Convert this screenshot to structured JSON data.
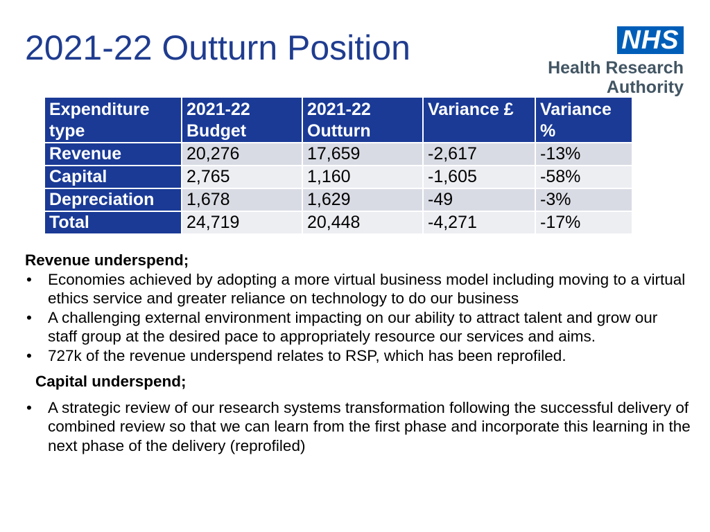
{
  "title": "2021-22 Outturn Position",
  "logo": {
    "badge": "NHS",
    "org_line1": "Health Research",
    "org_line2": "Authority",
    "badge_color": "#005eb8"
  },
  "table": {
    "headers": [
      "Expenditure type",
      "2021-22 Budget",
      "2021-22 Outturn",
      "Variance £",
      "Variance %"
    ],
    "rows": [
      {
        "type": "Revenue",
        "budget": "20,276",
        "outturn": "17,659",
        "variance": "-2,617",
        "variance_pct": "-13%"
      },
      {
        "type": "Capital",
        "budget": "2,765",
        "outturn": "1,160",
        "variance": "-1,605",
        "variance_pct": "-58%"
      },
      {
        "type": "Depreciation",
        "budget": "1,678",
        "outturn": "1,629",
        "variance": "-49",
        "variance_pct": "-3%"
      },
      {
        "type": "Total",
        "budget": "24,719",
        "outturn": "20,448",
        "variance": "-4,271",
        "variance_pct": "-17%"
      }
    ],
    "header_color": "#1a3a96"
  },
  "revenue": {
    "heading": "Revenue underspend;",
    "bullet_glyph": "•",
    "bullets": [
      "Economies achieved by adopting a more virtual business model including moving to a virtual ethics service and greater reliance on technology to do our business",
      "A challenging external environment impacting on our ability to attract talent and grow our staff group at the desired pace to appropriately resource our services and aims.",
      "727k of the revenue underspend relates to RSP, which has been reprofiled."
    ]
  },
  "capital": {
    "heading": "Capital underspend;",
    "bullets": [
      "A strategic review of our research systems transformation following the successful delivery of combined review so that we can learn from the first phase and incorporate this learning in the next phase of the delivery (reprofiled)"
    ]
  }
}
